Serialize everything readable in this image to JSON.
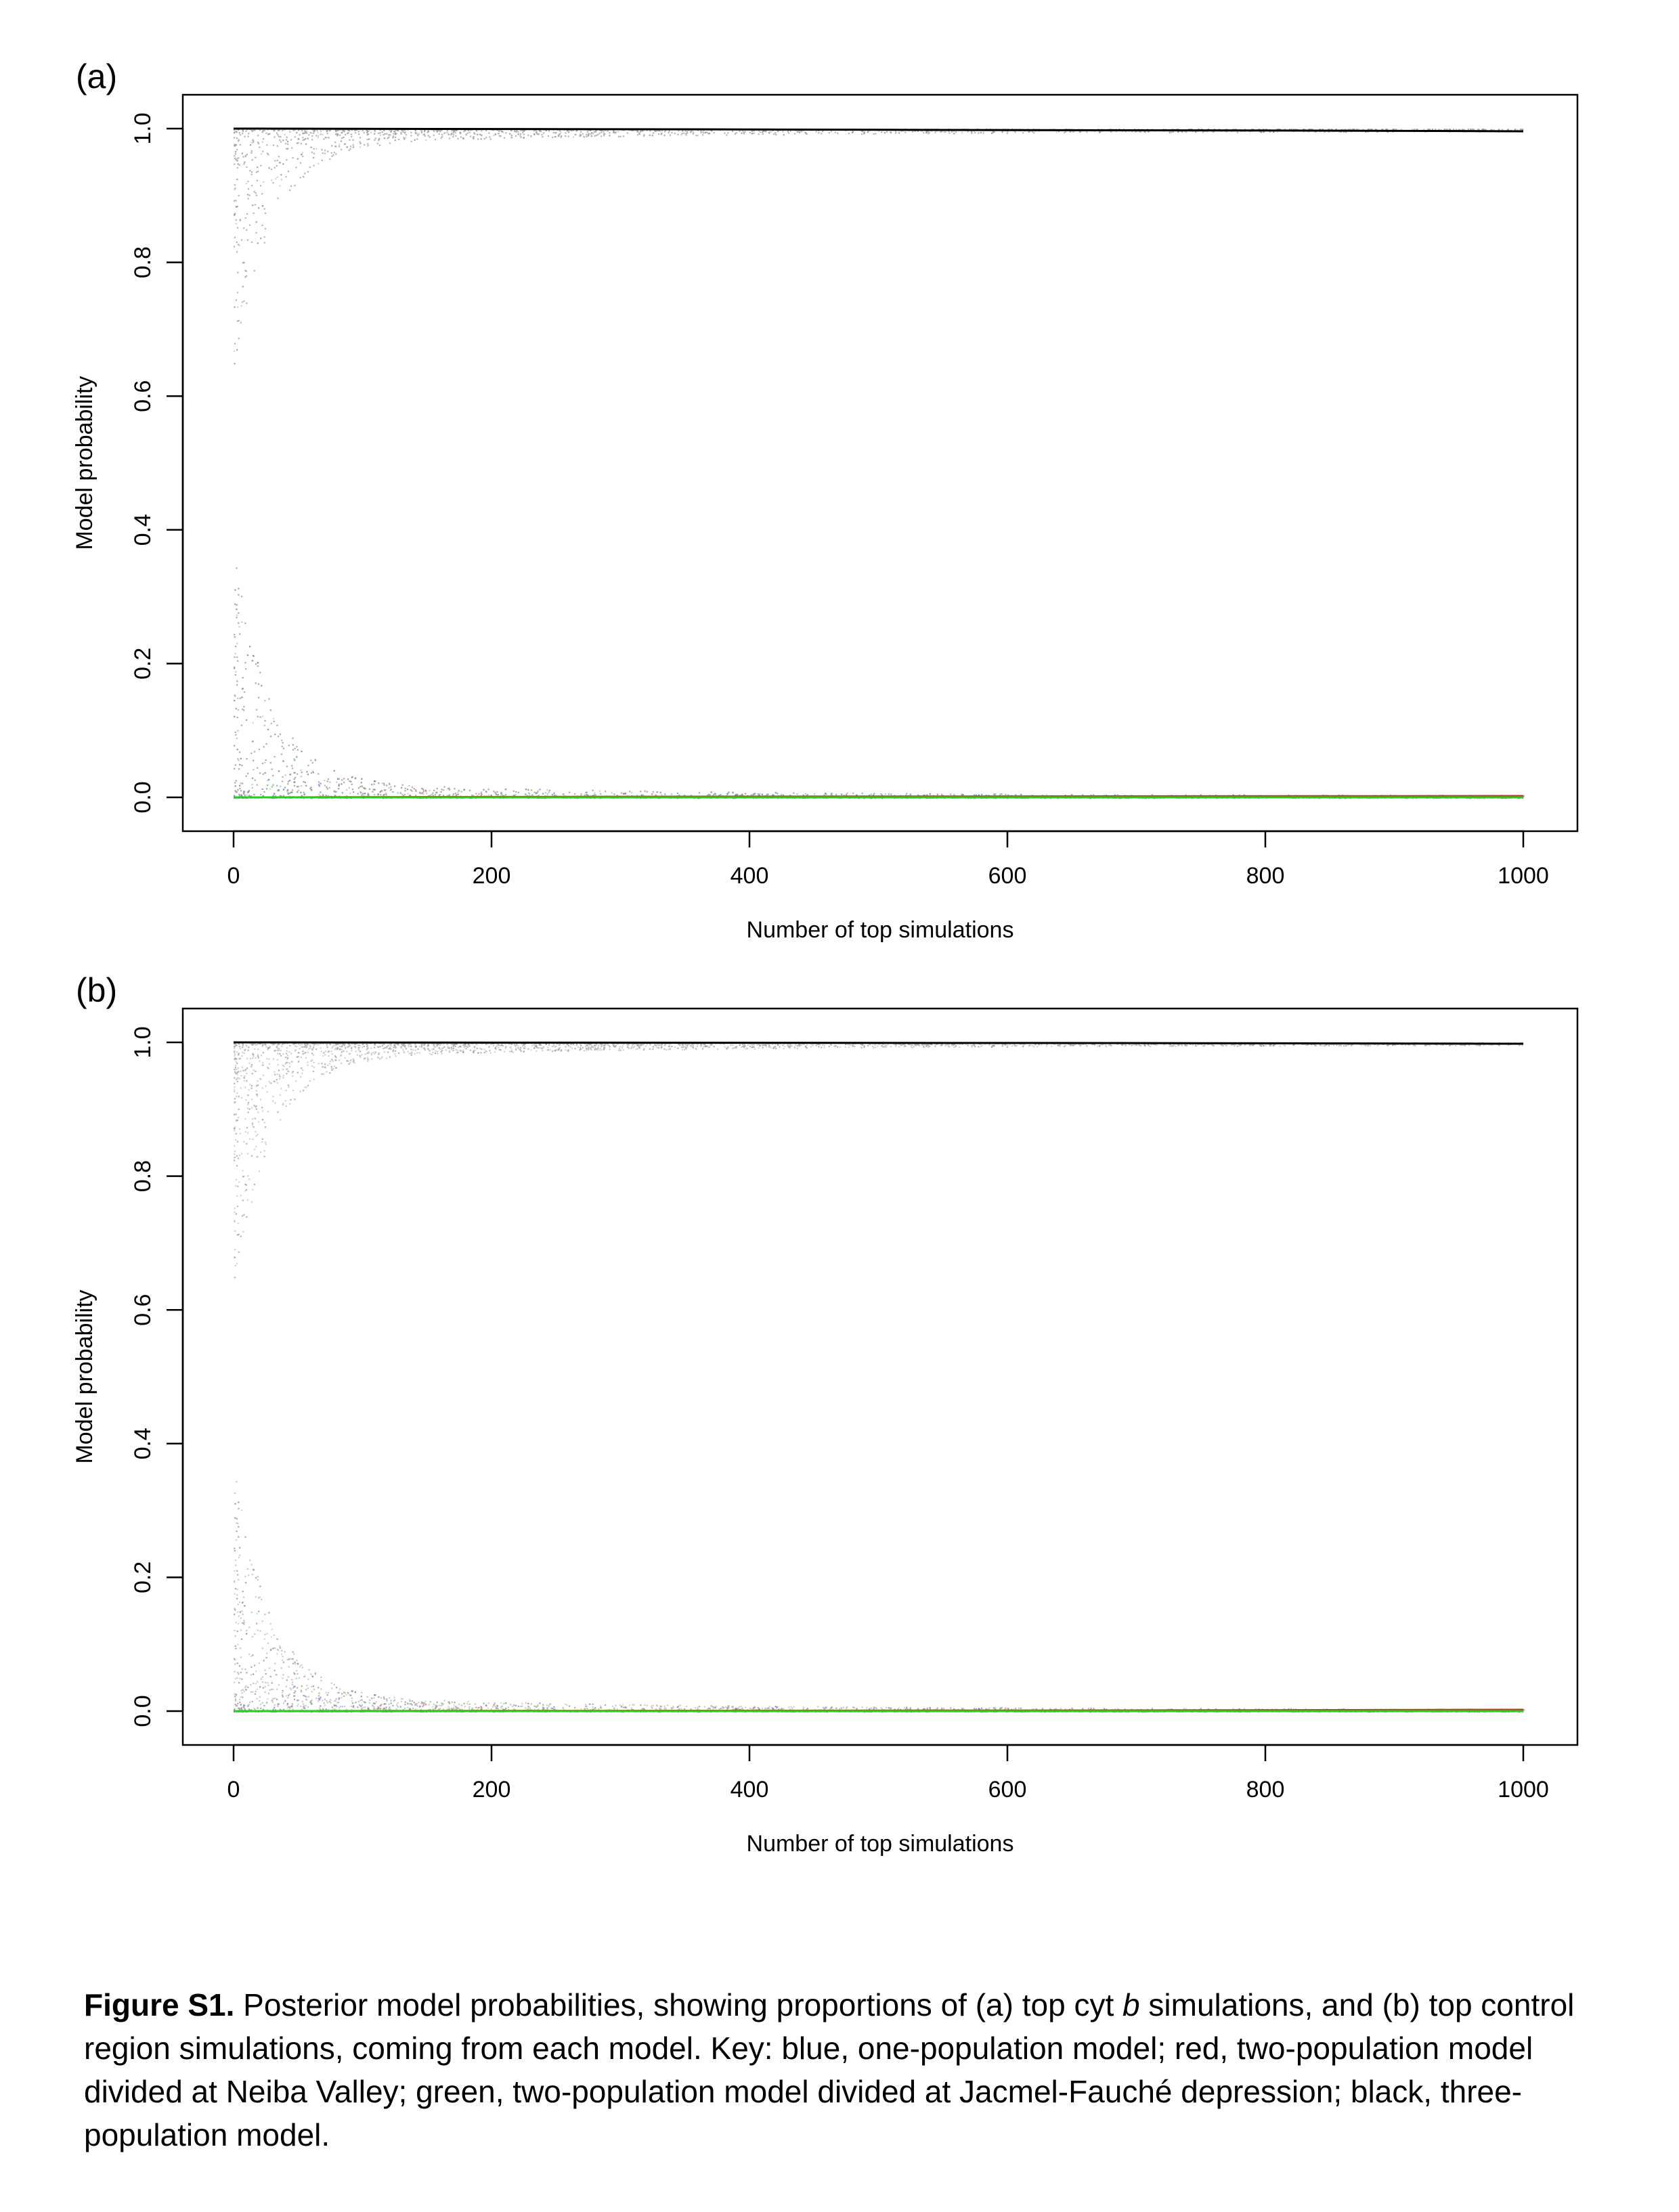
{
  "panels": [
    {
      "label": "(a)",
      "chart_data": {
        "type": "scatter",
        "xlabel": "Number of top simulations",
        "ylabel": "Model probability",
        "xlim": [
          0,
          1000
        ],
        "ylim": [
          0,
          1
        ],
        "x_ticks": [
          "0",
          "200",
          "400",
          "600",
          "800",
          "1000"
        ],
        "y_ticks": [
          "0.0",
          "0.2",
          "0.4",
          "0.6",
          "0.8",
          "1.0"
        ],
        "grid": false,
        "legend": "none",
        "series": [
          {
            "color": "#2030d0",
            "x": [
              0,
              1000
            ],
            "y": [
              0.0,
              0.0
            ]
          },
          {
            "color": "#d03020",
            "x": [
              0,
              340,
              1000
            ],
            "y": [
              0.0,
              0.001,
              0.002
            ]
          },
          {
            "color": "#20d020",
            "x": [
              0,
              340,
              1000
            ],
            "y": [
              0.0,
              0.0,
              0.0
            ]
          },
          {
            "color": "#000000",
            "x": [
              0,
              340,
              550,
              840,
              1000
            ],
            "y": [
              1.0,
              0.999,
              0.998,
              0.997,
              0.996
            ]
          }
        ]
      }
    },
    {
      "label": "(b)",
      "chart_data": {
        "type": "scatter",
        "xlabel": "Number of top simulations",
        "ylabel": "Model probability",
        "xlim": [
          0,
          1000
        ],
        "ylim": [
          0,
          1
        ],
        "x_ticks": [
          "0",
          "200",
          "400",
          "600",
          "800",
          "1000"
        ],
        "y_ticks": [
          "0.0",
          "0.2",
          "0.4",
          "0.6",
          "0.8",
          "1.0"
        ],
        "grid": false,
        "legend": "none",
        "series": [
          {
            "color": "#2030d0",
            "x": [
              0,
              1000
            ],
            "y": [
              0.0,
              0.0
            ]
          },
          {
            "color": "#d03020",
            "x": [
              0,
              670,
              1000
            ],
            "y": [
              0.0,
              0.001,
              0.002
            ]
          },
          {
            "color": "#20d020",
            "x": [
              0,
              1000
            ],
            "y": [
              0.0,
              0.0
            ]
          },
          {
            "color": "#000000",
            "x": [
              0,
              670,
              1000
            ],
            "y": [
              1.0,
              0.999,
              0.998
            ]
          }
        ]
      }
    }
  ],
  "caption": {
    "label": "Figure S1.",
    "part1": " Posterior model probabilities, showing proportions of (a) top cyt ",
    "italic": "b",
    "part2": " simulations, and (b) top control region simulations, coming from each model. Key: blue, one-population model; red, two-population model divided at Neiba Valley; green, two-population model divided at Jacmel-Fauché depression; black, three-population model."
  }
}
